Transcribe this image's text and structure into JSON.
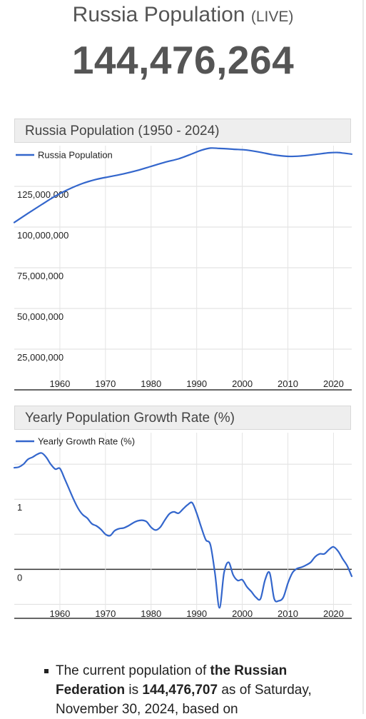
{
  "header": {
    "title": "Russia Population",
    "live_label": "(LIVE)",
    "live_count": "144,476,264"
  },
  "charts": [
    {
      "title": "Russia Population (1950 - 2024)",
      "legend": "Russia Population"
    },
    {
      "title": "Yearly Population Growth Rate (%)",
      "legend": "Yearly Growth Rate (%)"
    }
  ],
  "chart_data": [
    {
      "type": "line",
      "title": "Russia Population (1950 - 2024)",
      "xlabel": "",
      "ylabel": "",
      "xlim": [
        1950,
        2024
      ],
      "ylim": [
        0,
        150000000
      ],
      "x_ticks": [
        1960,
        1970,
        1980,
        1990,
        2000,
        2010,
        2020
      ],
      "x_tick_labels": [
        "1960",
        "1970",
        "1980",
        "1990",
        "2000",
        "2010",
        "2020"
      ],
      "y_ticks": [
        25000000,
        50000000,
        75000000,
        100000000,
        125000000
      ],
      "y_tick_labels": [
        "25,000,000",
        "50,000,000",
        "75,000,000",
        "100,000,000",
        "125,000,000"
      ],
      "grid": true,
      "legend_position": "top-left",
      "series": [
        {
          "name": "Russia Population",
          "color": "#3366cc",
          "x": [
            1950,
            1953,
            1956,
            1959,
            1962,
            1965,
            1968,
            1971,
            1974,
            1977,
            1980,
            1983,
            1986,
            1989,
            1991,
            1993,
            1995,
            1998,
            2001,
            2004,
            2007,
            2010,
            2013,
            2016,
            2019,
            2021,
            2022,
            2024
          ],
          "y": [
            102800000,
            108400000,
            113800000,
            119000000,
            123300000,
            126800000,
            129300000,
            131000000,
            132700000,
            134800000,
            137300000,
            139800000,
            141900000,
            145000000,
            147200000,
            148500000,
            148300000,
            147800000,
            147300000,
            145900000,
            144300000,
            143400000,
            143700000,
            144600000,
            145600000,
            145800000,
            145500000,
            144800000
          ]
        }
      ]
    },
    {
      "type": "line",
      "title": "Yearly Population Growth Rate (%)",
      "xlabel": "",
      "ylabel": "",
      "xlim": [
        1950,
        2024
      ],
      "ylim": [
        -0.7,
        1.95
      ],
      "x_ticks": [
        1960,
        1970,
        1980,
        1990,
        2000,
        2010,
        2020
      ],
      "x_tick_labels": [
        "1960",
        "1970",
        "1980",
        "1990",
        "2000",
        "2010",
        "2020"
      ],
      "y_ticks": [
        0,
        1
      ],
      "y_tick_labels": [
        "0",
        "1"
      ],
      "grid": true,
      "legend_position": "top-left",
      "series": [
        {
          "name": "Yearly Growth Rate (%)",
          "color": "#3366cc",
          "x": [
            1950,
            1951,
            1952,
            1953,
            1954,
            1955,
            1956,
            1957,
            1958,
            1959,
            1960,
            1961,
            1962,
            1963,
            1964,
            1965,
            1966,
            1967,
            1968,
            1969,
            1970,
            1971,
            1972,
            1973,
            1974,
            1975,
            1976,
            1977,
            1978,
            1979,
            1980,
            1981,
            1982,
            1983,
            1984,
            1985,
            1986,
            1987,
            1988,
            1989,
            1990,
            1991,
            1992,
            1993,
            1994,
            1995,
            1996,
            1997,
            1998,
            1999,
            2000,
            2001,
            2002,
            2003,
            2004,
            2005,
            2006,
            2007,
            2008,
            2009,
            2010,
            2011,
            2012,
            2013,
            2014,
            2015,
            2016,
            2017,
            2018,
            2019,
            2020,
            2021,
            2022,
            2023,
            2024
          ],
          "y": [
            1.45,
            1.46,
            1.5,
            1.57,
            1.6,
            1.64,
            1.66,
            1.6,
            1.5,
            1.43,
            1.44,
            1.3,
            1.15,
            1.0,
            0.87,
            0.78,
            0.73,
            0.65,
            0.62,
            0.57,
            0.5,
            0.48,
            0.55,
            0.58,
            0.59,
            0.62,
            0.66,
            0.69,
            0.7,
            0.68,
            0.6,
            0.56,
            0.6,
            0.7,
            0.79,
            0.82,
            0.8,
            0.86,
            0.92,
            0.95,
            0.8,
            0.6,
            0.42,
            0.35,
            -0.05,
            -0.55,
            -0.05,
            0.1,
            -0.08,
            -0.16,
            -0.15,
            -0.25,
            -0.32,
            -0.4,
            -0.42,
            -0.15,
            -0.05,
            -0.42,
            -0.45,
            -0.4,
            -0.2,
            -0.05,
            0.01,
            0.03,
            0.06,
            0.1,
            0.18,
            0.22,
            0.22,
            0.28,
            0.32,
            0.26,
            0.15,
            0.05,
            -0.1
          ]
        }
      ]
    }
  ],
  "bullet": {
    "text_1": "The current population of ",
    "bold_1": "the Russian Federation",
    "text_2": " is ",
    "bold_2": "144,476,707",
    "text_3": " as of Saturday, November 30, 2024, based on"
  }
}
